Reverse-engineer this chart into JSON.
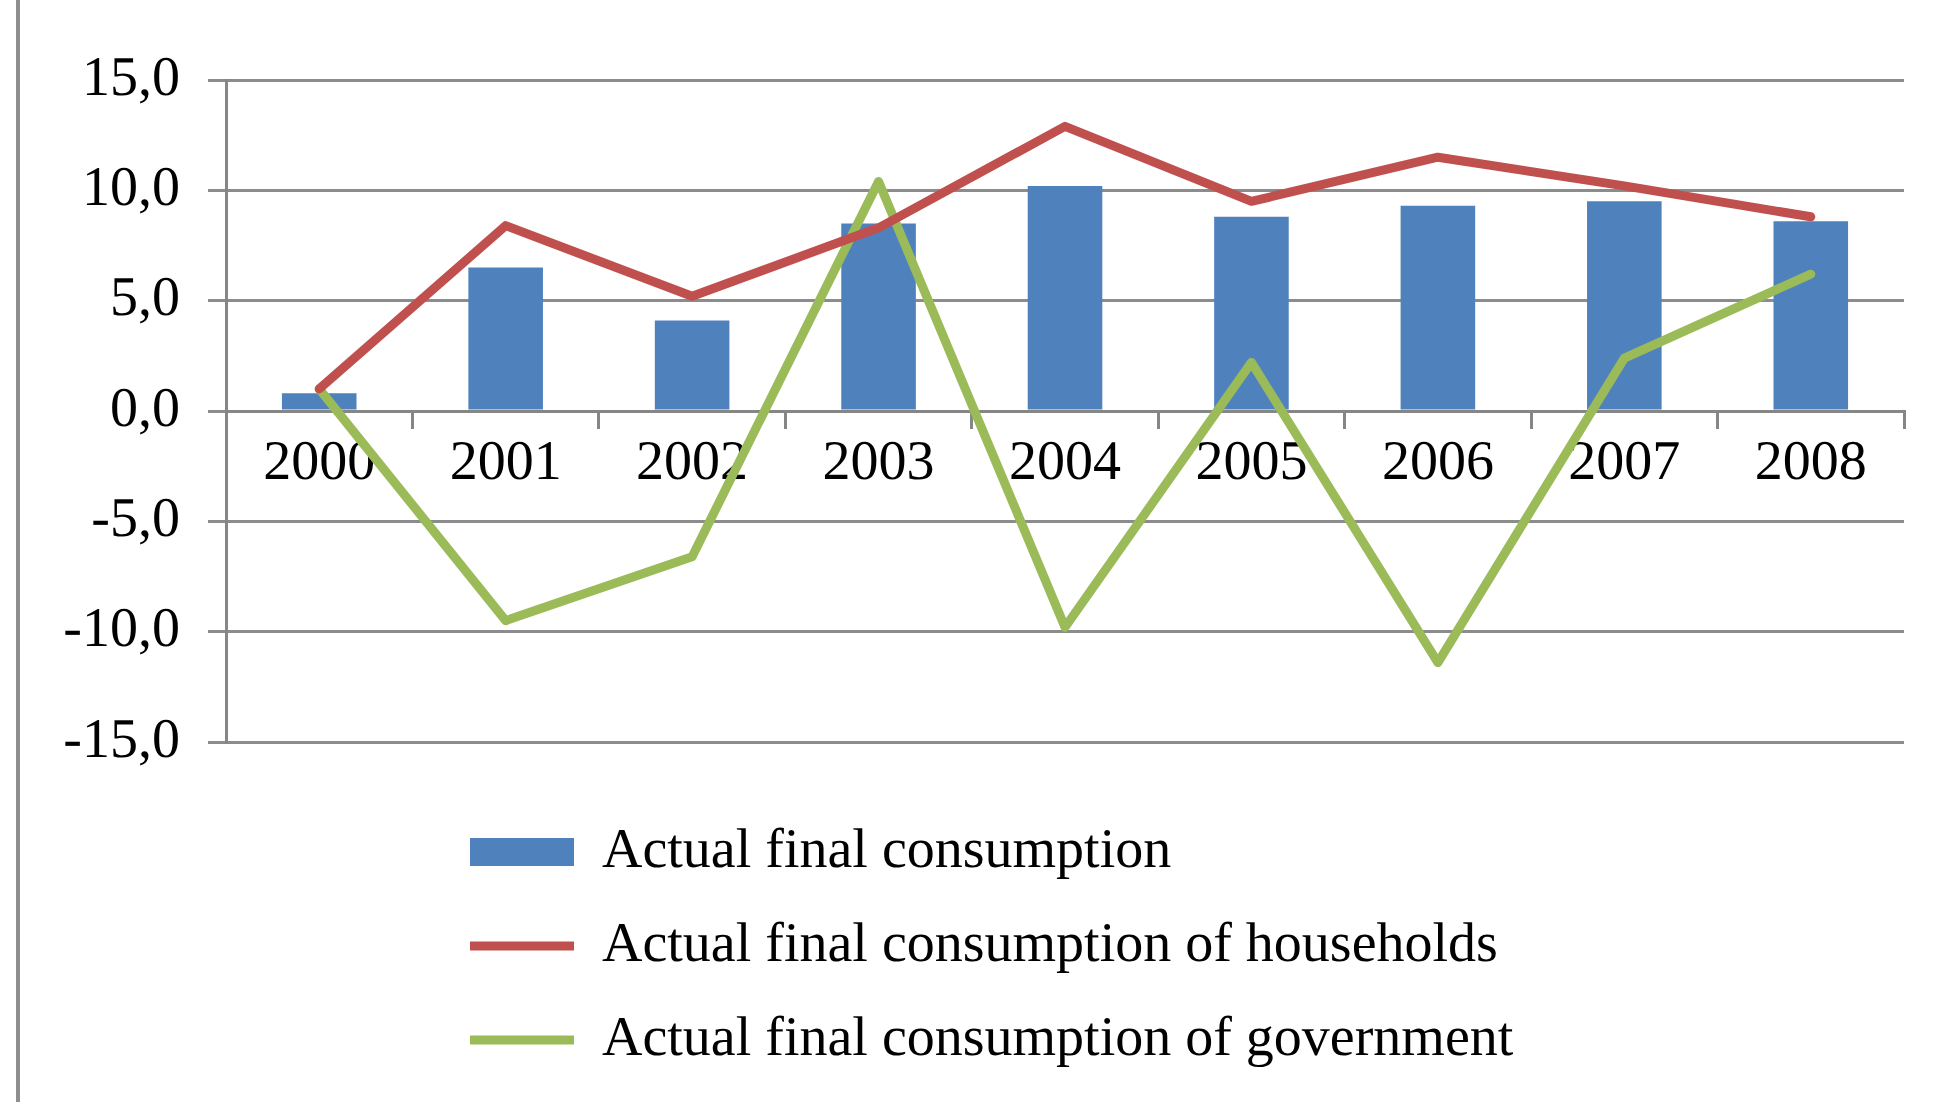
{
  "chart_data": {
    "type": "bar",
    "categories": [
      "2000",
      "2001",
      "2002",
      "2003",
      "2004",
      "2005",
      "2006",
      "2007",
      "2008"
    ],
    "series": [
      {
        "name": "Actual final consumption",
        "color": "#4f81bd",
        "values": [
          0.8,
          6.5,
          4.1,
          8.5,
          10.2,
          8.8,
          9.3,
          9.5,
          8.6
        ]
      },
      {
        "name": "Actual final consumption of households",
        "type": "line",
        "color": "#c0504d",
        "values": [
          1.0,
          8.4,
          5.2,
          8.3,
          12.9,
          9.5,
          11.5,
          10.2,
          8.8
        ]
      },
      {
        "name": "Actual final consumption of government",
        "type": "line",
        "color": "#9bbb59",
        "values": [
          1.0,
          -9.5,
          -6.6,
          10.4,
          -9.8,
          2.2,
          -11.4,
          2.4,
          6.2
        ]
      }
    ],
    "ylim": [
      -15,
      15
    ],
    "yticks": [
      {
        "value": -15,
        "label": "-15,0"
      },
      {
        "value": -10,
        "label": "-10,0"
      },
      {
        "value": -5,
        "label": "-5,0"
      },
      {
        "value": 0,
        "label": "0,0"
      },
      {
        "value": 5,
        "label": "5,0"
      },
      {
        "value": 10,
        "label": "10,0"
      },
      {
        "value": 15,
        "label": "15,0"
      }
    ],
    "grid": "y",
    "legend": "bottom"
  }
}
